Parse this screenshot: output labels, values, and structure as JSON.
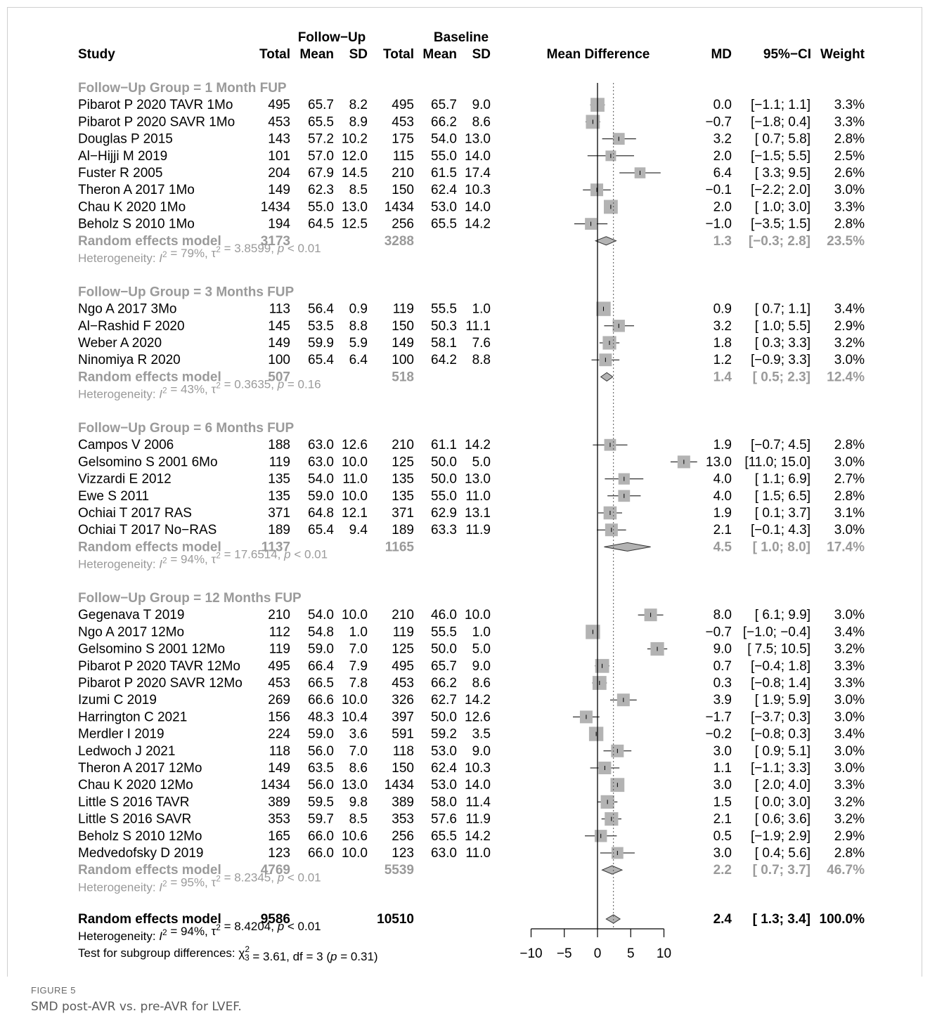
{
  "caption": {
    "label": "FIGURE 5",
    "text": "SMD post-AVR vs. pre-AVR for LVEF."
  },
  "colors": {
    "text": "#000000",
    "subgroup": "#9a9a9a",
    "box": "#b3b3b3",
    "diamond": "#b3b3b3"
  },
  "chart_data": {
    "type": "forest",
    "headers": {
      "followup": "Follow−Up",
      "baseline": "Baseline",
      "study": "Study",
      "total_fu": "Total",
      "mean_fu": "Mean",
      "sd_fu": "SD",
      "total_bl": "Total",
      "mean_bl": "Mean",
      "sd_bl": "SD",
      "effect": "Mean Difference",
      "md": "MD",
      "ci": "95%−CI",
      "weight": "Weight"
    },
    "xaxis": {
      "min": -10,
      "max": 10,
      "ticks": [
        -10,
        -5,
        0,
        5,
        10
      ],
      "tick_labels": [
        "−10",
        "−5",
        "0",
        "5",
        "10"
      ],
      "null_line": 0,
      "reference_line": 2.4
    },
    "groups": [
      {
        "title": "Follow−Up Group = 1 Month FUP",
        "studies": [
          {
            "study": "Pibarot P 2020 TAVR 1Mo",
            "n1": "495",
            "m1": "65.7",
            "sd1": "8.2",
            "n2": "495",
            "m2": "65.7",
            "sd2": "9.0",
            "md": 0.0,
            "lo": -1.1,
            "hi": 1.1,
            "w": 3.3,
            "md_t": "0.0",
            "ci_t": "[−1.1;  1.1]",
            "w_t": "3.3%"
          },
          {
            "study": "Pibarot P 2020 SAVR 1Mo",
            "n1": "453",
            "m1": "65.5",
            "sd1": "8.9",
            "n2": "453",
            "m2": "66.2",
            "sd2": "8.6",
            "md": -0.7,
            "lo": -1.8,
            "hi": 0.4,
            "w": 3.3,
            "md_t": "−0.7",
            "ci_t": "[−1.8;  0.4]",
            "w_t": "3.3%"
          },
          {
            "study": "Douglas P 2015",
            "n1": "143",
            "m1": "57.2",
            "sd1": "10.2",
            "n2": "175",
            "m2": "54.0",
            "sd2": "13.0",
            "md": 3.2,
            "lo": 0.7,
            "hi": 5.8,
            "w": 2.8,
            "md_t": "3.2",
            "ci_t": "[ 0.7;  5.8]",
            "w_t": "2.8%"
          },
          {
            "study": "Al−Hijji M 2019",
            "n1": "101",
            "m1": "57.0",
            "sd1": "12.0",
            "n2": "115",
            "m2": "55.0",
            "sd2": "14.0",
            "md": 2.0,
            "lo": -1.5,
            "hi": 5.5,
            "w": 2.5,
            "md_t": "2.0",
            "ci_t": "[−1.5;  5.5]",
            "w_t": "2.5%"
          },
          {
            "study": "Fuster R 2005",
            "n1": "204",
            "m1": "67.9",
            "sd1": "14.5",
            "n2": "210",
            "m2": "61.5",
            "sd2": "17.4",
            "md": 6.4,
            "lo": 3.3,
            "hi": 9.5,
            "w": 2.6,
            "md_t": "6.4",
            "ci_t": "[ 3.3;  9.5]",
            "w_t": "2.6%"
          },
          {
            "study": "Theron A 2017 1Mo",
            "n1": "149",
            "m1": "62.3",
            "sd1": "8.5",
            "n2": "150",
            "m2": "62.4",
            "sd2": "10.3",
            "md": -0.1,
            "lo": -2.2,
            "hi": 2.0,
            "w": 3.0,
            "md_t": "−0.1",
            "ci_t": "[−2.2;  2.0]",
            "w_t": "3.0%"
          },
          {
            "study": "Chau K 2020 1Mo",
            "n1": "1434",
            "m1": "55.0",
            "sd1": "13.0",
            "n2": "1434",
            "m2": "53.0",
            "sd2": "14.0",
            "md": 2.0,
            "lo": 1.0,
            "hi": 3.0,
            "w": 3.3,
            "md_t": "2.0",
            "ci_t": "[ 1.0;  3.0]",
            "w_t": "3.3%"
          },
          {
            "study": "Beholz S 2010 1Mo",
            "n1": "194",
            "m1": "64.5",
            "sd1": "12.5",
            "n2": "256",
            "m2": "65.5",
            "sd2": "14.2",
            "md": -1.0,
            "lo": -3.5,
            "hi": 1.5,
            "w": 2.8,
            "md_t": "−1.0",
            "ci_t": "[−3.5;  1.5]",
            "w_t": "2.8%"
          }
        ],
        "pooled": {
          "label": "Random effects model",
          "n1": "3173",
          "n2": "3288",
          "md": 1.3,
          "lo": -0.3,
          "hi": 2.8,
          "md_t": "1.3",
          "ci_t": "[−0.3;  2.8]",
          "w_t": "23.5%"
        },
        "het": {
          "i2": "79%",
          "tau2": "3.8599",
          "p": "< 0.01"
        }
      },
      {
        "title": "Follow−Up Group = 3 Months FUP",
        "studies": [
          {
            "study": "Ngo A 2017 3Mo",
            "n1": "113",
            "m1": "56.4",
            "sd1": "0.9",
            "n2": "119",
            "m2": "55.5",
            "sd2": "1.0",
            "md": 0.9,
            "lo": 0.7,
            "hi": 1.1,
            "w": 3.4,
            "md_t": "0.9",
            "ci_t": "[ 0.7;  1.1]",
            "w_t": "3.4%"
          },
          {
            "study": "Al−Rashid F 2020",
            "n1": "145",
            "m1": "53.5",
            "sd1": "8.8",
            "n2": "150",
            "m2": "50.3",
            "sd2": "11.1",
            "md": 3.2,
            "lo": 1.0,
            "hi": 5.5,
            "w": 2.9,
            "md_t": "3.2",
            "ci_t": "[ 1.0;  5.5]",
            "w_t": "2.9%"
          },
          {
            "study": "Weber A 2020",
            "n1": "149",
            "m1": "59.9",
            "sd1": "5.9",
            "n2": "149",
            "m2": "58.1",
            "sd2": "7.6",
            "md": 1.8,
            "lo": 0.3,
            "hi": 3.3,
            "w": 3.2,
            "md_t": "1.8",
            "ci_t": "[ 0.3;  3.3]",
            "w_t": "3.2%"
          },
          {
            "study": "Ninomiya R 2020",
            "n1": "100",
            "m1": "65.4",
            "sd1": "6.4",
            "n2": "100",
            "m2": "64.2",
            "sd2": "8.8",
            "md": 1.2,
            "lo": -0.9,
            "hi": 3.3,
            "w": 3.0,
            "md_t": "1.2",
            "ci_t": "[−0.9;  3.3]",
            "w_t": "3.0%"
          }
        ],
        "pooled": {
          "label": "Random effects model",
          "n1": "507",
          "n2": "518",
          "md": 1.4,
          "lo": 0.5,
          "hi": 2.3,
          "md_t": "1.4",
          "ci_t": "[ 0.5;  2.3]",
          "w_t": "12.4%"
        },
        "het": {
          "i2": "43%",
          "tau2": "0.3635",
          "p": "= 0.16"
        }
      },
      {
        "title": "Follow−Up Group = 6 Months FUP",
        "studies": [
          {
            "study": "Campos V 2006",
            "n1": "188",
            "m1": "63.0",
            "sd1": "12.6",
            "n2": "210",
            "m2": "61.1",
            "sd2": "14.2",
            "md": 1.9,
            "lo": -0.7,
            "hi": 4.5,
            "w": 2.8,
            "md_t": "1.9",
            "ci_t": "[−0.7;  4.5]",
            "w_t": "2.8%"
          },
          {
            "study": "Gelsomino S 2001 6Mo",
            "n1": "119",
            "m1": "63.0",
            "sd1": "10.0",
            "n2": "125",
            "m2": "50.0",
            "sd2": "5.0",
            "md": 13.0,
            "lo": 11.0,
            "hi": 15.0,
            "w": 3.0,
            "md_t": "13.0",
            "ci_t": "[11.0; 15.0]",
            "w_t": "3.0%"
          },
          {
            "study": "Vizzardi E 2012",
            "n1": "135",
            "m1": "54.0",
            "sd1": "11.0",
            "n2": "135",
            "m2": "50.0",
            "sd2": "13.0",
            "md": 4.0,
            "lo": 1.1,
            "hi": 6.9,
            "w": 2.7,
            "md_t": "4.0",
            "ci_t": "[ 1.1;  6.9]",
            "w_t": "2.7%"
          },
          {
            "study": "Ewe S 2011",
            "n1": "135",
            "m1": "59.0",
            "sd1": "10.0",
            "n2": "135",
            "m2": "55.0",
            "sd2": "11.0",
            "md": 4.0,
            "lo": 1.5,
            "hi": 6.5,
            "w": 2.8,
            "md_t": "4.0",
            "ci_t": "[ 1.5;  6.5]",
            "w_t": "2.8%"
          },
          {
            "study": "Ochiai T 2017 RAS",
            "n1": "371",
            "m1": "64.8",
            "sd1": "12.1",
            "n2": "371",
            "m2": "62.9",
            "sd2": "13.1",
            "md": 1.9,
            "lo": 0.1,
            "hi": 3.7,
            "w": 3.1,
            "md_t": "1.9",
            "ci_t": "[ 0.1;  3.7]",
            "w_t": "3.1%"
          },
          {
            "study": "Ochiai T 2017 No−RAS",
            "n1": "189",
            "m1": "65.4",
            "sd1": "9.4",
            "n2": "189",
            "m2": "63.3",
            "sd2": "11.9",
            "md": 2.1,
            "lo": -0.1,
            "hi": 4.3,
            "w": 3.0,
            "md_t": "2.1",
            "ci_t": "[−0.1;  4.3]",
            "w_t": "3.0%"
          }
        ],
        "pooled": {
          "label": "Random effects model",
          "n1": "1137",
          "n2": "1165",
          "md": 4.5,
          "lo": 1.0,
          "hi": 8.0,
          "md_t": "4.5",
          "ci_t": "[ 1.0;  8.0]",
          "w_t": "17.4%"
        },
        "het": {
          "i2": "94%",
          "tau2": "17.6514",
          "p": "< 0.01"
        }
      },
      {
        "title": "Follow−Up Group = 12 Months FUP",
        "studies": [
          {
            "study": "Gegenava T 2019",
            "n1": "210",
            "m1": "54.0",
            "sd1": "10.0",
            "n2": "210",
            "m2": "46.0",
            "sd2": "10.0",
            "md": 8.0,
            "lo": 6.1,
            "hi": 9.9,
            "w": 3.0,
            "md_t": "8.0",
            "ci_t": "[ 6.1;  9.9]",
            "w_t": "3.0%"
          },
          {
            "study": "Ngo A 2017 12Mo",
            "n1": "112",
            "m1": "54.8",
            "sd1": "1.0",
            "n2": "119",
            "m2": "55.5",
            "sd2": "1.0",
            "md": -0.7,
            "lo": -1.0,
            "hi": -0.4,
            "w": 3.4,
            "md_t": "−0.7",
            "ci_t": "[−1.0; −0.4]",
            "w_t": "3.4%"
          },
          {
            "study": "Gelsomino S 2001 12Mo",
            "n1": "119",
            "m1": "59.0",
            "sd1": "7.0",
            "n2": "125",
            "m2": "50.0",
            "sd2": "5.0",
            "md": 9.0,
            "lo": 7.5,
            "hi": 10.5,
            "w": 3.2,
            "md_t": "9.0",
            "ci_t": "[ 7.5; 10.5]",
            "w_t": "3.2%"
          },
          {
            "study": "Pibarot P 2020 TAVR 12Mo",
            "n1": "495",
            "m1": "66.4",
            "sd1": "7.9",
            "n2": "495",
            "m2": "65.7",
            "sd2": "9.0",
            "md": 0.7,
            "lo": -0.4,
            "hi": 1.8,
            "w": 3.3,
            "md_t": "0.7",
            "ci_t": "[−0.4;  1.8]",
            "w_t": "3.3%"
          },
          {
            "study": "Pibarot P 2020 SAVR 12Mo",
            "n1": "453",
            "m1": "66.5",
            "sd1": "7.8",
            "n2": "453",
            "m2": "66.2",
            "sd2": "8.6",
            "md": 0.3,
            "lo": -0.8,
            "hi": 1.4,
            "w": 3.3,
            "md_t": "0.3",
            "ci_t": "[−0.8;  1.4]",
            "w_t": "3.3%"
          },
          {
            "study": "Izumi C 2019",
            "n1": "269",
            "m1": "66.6",
            "sd1": "10.0",
            "n2": "326",
            "m2": "62.7",
            "sd2": "14.2",
            "md": 3.9,
            "lo": 1.9,
            "hi": 5.9,
            "w": 3.0,
            "md_t": "3.9",
            "ci_t": "[ 1.9;  5.9]",
            "w_t": "3.0%"
          },
          {
            "study": "Harrington C 2021",
            "n1": "156",
            "m1": "48.3",
            "sd1": "10.4",
            "n2": "397",
            "m2": "50.0",
            "sd2": "12.6",
            "md": -1.7,
            "lo": -3.7,
            "hi": 0.3,
            "w": 3.0,
            "md_t": "−1.7",
            "ci_t": "[−3.7;  0.3]",
            "w_t": "3.0%"
          },
          {
            "study": "Merdler I 2019",
            "n1": "224",
            "m1": "59.0",
            "sd1": "3.6",
            "n2": "591",
            "m2": "59.2",
            "sd2": "3.5",
            "md": -0.2,
            "lo": -0.8,
            "hi": 0.3,
            "w": 3.4,
            "md_t": "−0.2",
            "ci_t": "[−0.8;  0.3]",
            "w_t": "3.4%"
          },
          {
            "study": "Ledwoch J 2021",
            "n1": "118",
            "m1": "56.0",
            "sd1": "7.0",
            "n2": "118",
            "m2": "53.0",
            "sd2": "9.0",
            "md": 3.0,
            "lo": 0.9,
            "hi": 5.1,
            "w": 3.0,
            "md_t": "3.0",
            "ci_t": "[ 0.9;  5.1]",
            "w_t": "3.0%"
          },
          {
            "study": "Theron A 2017 12Mo",
            "n1": "149",
            "m1": "63.5",
            "sd1": "8.6",
            "n2": "150",
            "m2": "62.4",
            "sd2": "10.3",
            "md": 1.1,
            "lo": -1.1,
            "hi": 3.3,
            "w": 3.0,
            "md_t": "1.1",
            "ci_t": "[−1.1;  3.3]",
            "w_t": "3.0%"
          },
          {
            "study": "Chau K 2020 12Mo",
            "n1": "1434",
            "m1": "56.0",
            "sd1": "13.0",
            "n2": "1434",
            "m2": "53.0",
            "sd2": "14.0",
            "md": 3.0,
            "lo": 2.0,
            "hi": 4.0,
            "w": 3.3,
            "md_t": "3.0",
            "ci_t": "[ 2.0;  4.0]",
            "w_t": "3.3%"
          },
          {
            "study": "Little S 2016 TAVR",
            "n1": "389",
            "m1": "59.5",
            "sd1": "9.8",
            "n2": "389",
            "m2": "58.0",
            "sd2": "11.4",
            "md": 1.5,
            "lo": 0.0,
            "hi": 3.0,
            "w": 3.2,
            "md_t": "1.5",
            "ci_t": "[ 0.0;  3.0]",
            "w_t": "3.2%"
          },
          {
            "study": "Little S 2016 SAVR",
            "n1": "353",
            "m1": "59.7",
            "sd1": "8.5",
            "n2": "353",
            "m2": "57.6",
            "sd2": "11.9",
            "md": 2.1,
            "lo": 0.6,
            "hi": 3.6,
            "w": 3.2,
            "md_t": "2.1",
            "ci_t": "[ 0.6;  3.6]",
            "w_t": "3.2%"
          },
          {
            "study": "Beholz S 2010 12Mo",
            "n1": "165",
            "m1": "66.0",
            "sd1": "10.6",
            "n2": "256",
            "m2": "65.5",
            "sd2": "14.2",
            "md": 0.5,
            "lo": -1.9,
            "hi": 2.9,
            "w": 2.9,
            "md_t": "0.5",
            "ci_t": "[−1.9;  2.9]",
            "w_t": "2.9%"
          },
          {
            "study": "Medvedofsky D 2019",
            "n1": "123",
            "m1": "66.0",
            "sd1": "10.0",
            "n2": "123",
            "m2": "63.0",
            "sd2": "11.0",
            "md": 3.0,
            "lo": 0.4,
            "hi": 5.6,
            "w": 2.8,
            "md_t": "3.0",
            "ci_t": "[ 0.4;  5.6]",
            "w_t": "2.8%"
          }
        ],
        "pooled": {
          "label": "Random effects model",
          "n1": "4769",
          "n2": "5539",
          "md": 2.2,
          "lo": 0.7,
          "hi": 3.7,
          "md_t": "2.2",
          "ci_t": "[ 0.7;  3.7]",
          "w_t": "46.7%"
        },
        "het": {
          "i2": "95%",
          "tau2": "8.2345",
          "p": "< 0.01"
        }
      }
    ],
    "overall": {
      "label": "Random effects model",
      "n1": "9586",
      "n2": "10510",
      "md": 2.4,
      "lo": 1.3,
      "hi": 3.4,
      "md_t": "2.4",
      "ci_t": "[ 1.3;  3.4]",
      "w_t": "100.0%"
    },
    "overall_het": {
      "i2": "94%",
      "tau2": "8.4204",
      "p": "< 0.01"
    },
    "subgroup_test": {
      "prefix": "Test for subgroup differences: ",
      "chi_sub": "3",
      "chi_val": " = 3.61, df = 3 (",
      "p": " = 0.31)"
    }
  }
}
